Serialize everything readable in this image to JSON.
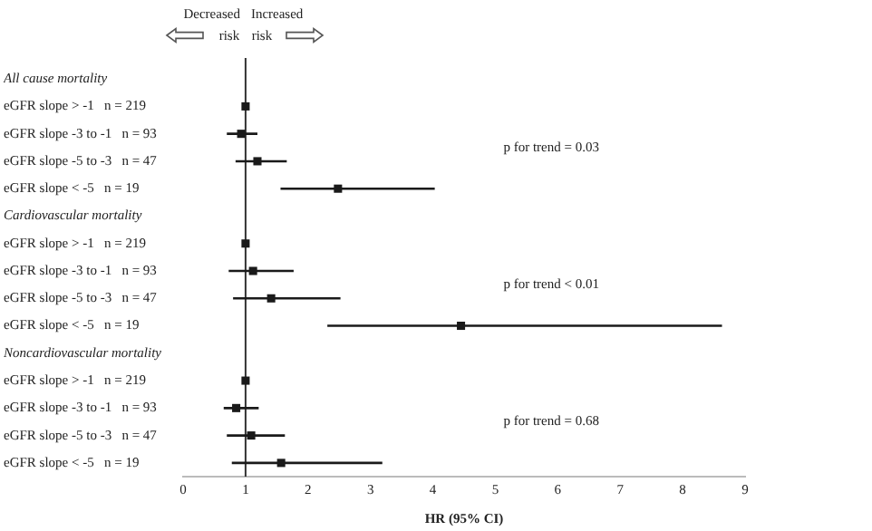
{
  "chart_data": {
    "type": "scatter",
    "orientation": "horizontal",
    "xlabel": "HR (95% CI)",
    "categories": [
      "All cause mortality",
      "eGFR slope > -1   n = 219",
      "eGFR slope -3 to -1   n = 93",
      "eGFR slope -5 to -3   n = 47",
      "eGFR slope < -5   n = 19",
      "Cardiovascular mortality",
      "eGFR slope > -1   n = 219",
      "eGFR slope -3 to -1   n = 93",
      "eGFR slope -5 to -3   n = 47",
      "eGFR slope < -5   n = 19",
      "Noncardiovascular mortality",
      "eGFR slope > -1   n = 219",
      "eGFR slope -3 to -1   n = 93",
      "eGFR slope -5 to -3   n = 47",
      "eGFR slope < -5   n = 19"
    ],
    "values": [
      null,
      1.0,
      0.93,
      1.19,
      2.48,
      null,
      1.0,
      1.12,
      1.41,
      4.45,
      null,
      1.0,
      0.85,
      1.09,
      1.57
    ],
    "errors": [
      null,
      null,
      [
        0.7,
        1.19
      ],
      [
        0.84,
        1.66
      ],
      [
        1.56,
        4.03
      ],
      null,
      null,
      [
        0.73,
        1.77
      ],
      [
        0.8,
        2.52
      ],
      [
        2.31,
        8.63
      ],
      null,
      null,
      [
        0.65,
        1.21
      ],
      [
        0.7,
        1.63
      ],
      [
        0.78,
        3.19
      ]
    ],
    "color": "#1a1a1a",
    "marker": "square",
    "xlim": [
      0,
      9
    ],
    "xticks": [
      0,
      1,
      2,
      3,
      4,
      5,
      6,
      7,
      8,
      9
    ],
    "grid": false,
    "legend": false,
    "ref_lines": [
      {
        "axis": "x",
        "value": 1,
        "color": "#333333"
      }
    ],
    "annotations": [
      "Decreased risk",
      "Increased risk",
      "p for trend = 0.03",
      "p for trend < 0.01",
      "p for trend = 0.68"
    ]
  }
}
